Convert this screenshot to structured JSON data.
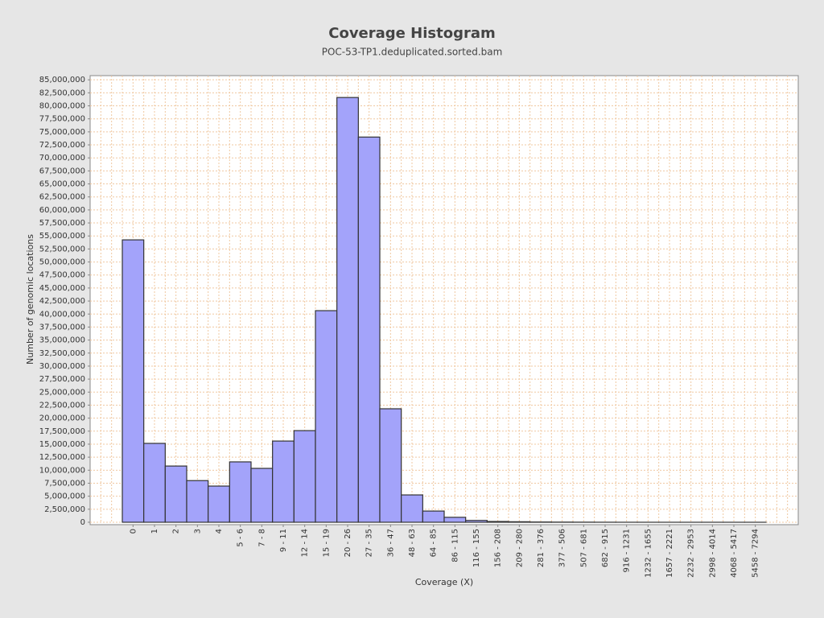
{
  "chart_data": {
    "type": "bar",
    "title": "Coverage Histogram",
    "subtitle": "POC-53-TP1.deduplicated.sorted.bam",
    "x_label": "Coverage (X)",
    "y_label": "Number of genomic locations",
    "categories": [
      "0",
      "1",
      "2",
      "3",
      "4",
      "5 - 6",
      "7 - 8",
      "9 - 11",
      "12 - 14",
      "15 - 19",
      "20 - 26",
      "27 - 35",
      "36 - 47",
      "48 - 63",
      "64 - 85",
      "86 - 115",
      "116 - 155",
      "156 - 208",
      "209 - 280",
      "281 - 376",
      "377 - 506",
      "507 - 681",
      "682 - 915",
      "916 - 1231",
      "1232 - 1655",
      "1657 - 2221",
      "2232 - 2953",
      "2998 - 4014",
      "4068 - 5417",
      "5458 - 7294"
    ],
    "values": [
      54250000,
      15150000,
      10800000,
      8000000,
      6950000,
      11600000,
      10350000,
      15600000,
      17600000,
      40650000,
      81600000,
      74000000,
      21800000,
      5250000,
      2150000,
      950000,
      350000,
      150000,
      100000,
      50000,
      30000,
      20000,
      10000,
      5000,
      3000,
      2000,
      1000,
      1000,
      500,
      300
    ],
    "color": "#a3a3fa",
    "ylim": [
      0,
      85800000
    ],
    "yticks": [
      0,
      {
        "value": 2500000,
        "label": "2,500,000"
      },
      {
        "value": 5000000,
        "label": "5,000,000"
      },
      {
        "value": 7500000,
        "label": "7,500,000"
      },
      {
        "value": 10000000,
        "label": "10,000,000"
      },
      {
        "value": 12500000,
        "label": "12,500,000"
      },
      {
        "value": 15000000,
        "label": "15,000,000"
      },
      {
        "value": 17500000,
        "label": "17,500,000"
      },
      {
        "value": 20000000,
        "label": "20,000,000"
      },
      {
        "value": 22500000,
        "label": "22,500,000"
      },
      {
        "value": 25000000,
        "label": "25,000,000"
      },
      {
        "value": 27500000,
        "label": "27,500,000"
      },
      {
        "value": 30000000,
        "label": "30,000,000"
      },
      {
        "value": 32500000,
        "label": "32,500,000"
      },
      {
        "value": 35000000,
        "label": "35,000,000"
      },
      {
        "value": 37500000,
        "label": "37,500,000"
      },
      {
        "value": 40000000,
        "label": "40,000,000"
      },
      {
        "value": 42500000,
        "label": "42,500,000"
      },
      {
        "value": 45000000,
        "label": "45,000,000"
      },
      {
        "value": 47500000,
        "label": "47,500,000"
      },
      {
        "value": 50000000,
        "label": "50,000,000"
      },
      {
        "value": 52500000,
        "label": "52,500,000"
      },
      {
        "value": 55000000,
        "label": "55,000,000"
      },
      {
        "value": 57500000,
        "label": "57,500,000"
      },
      {
        "value": 60000000,
        "label": "60,000,000"
      },
      {
        "value": 62500000,
        "label": "62,500,000"
      },
      {
        "value": 65000000,
        "label": "65,000,000"
      },
      {
        "value": 67500000,
        "label": "67,500,000"
      },
      {
        "value": 70000000,
        "label": "70,000,000"
      },
      {
        "value": 72500000,
        "label": "72,500,000"
      },
      {
        "value": 75000000,
        "label": "75,000,000"
      },
      {
        "value": 77500000,
        "label": "77,500,000"
      },
      {
        "value": 80000000,
        "label": "80,000,000"
      },
      {
        "value": 82500000,
        "label": "82,500,000"
      },
      {
        "value": 85000000,
        "label": "85,000,000"
      }
    ],
    "grid": true
  }
}
